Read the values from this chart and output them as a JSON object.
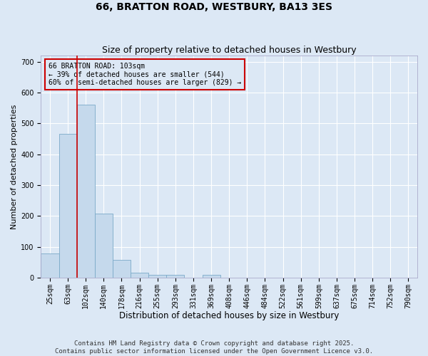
{
  "title": "66, BRATTON ROAD, WESTBURY, BA13 3ES",
  "subtitle": "Size of property relative to detached houses in Westbury",
  "xlabel": "Distribution of detached houses by size in Westbury",
  "ylabel": "Number of detached properties",
  "categories": [
    "25sqm",
    "63sqm",
    "102sqm",
    "140sqm",
    "178sqm",
    "216sqm",
    "255sqm",
    "293sqm",
    "331sqm",
    "369sqm",
    "408sqm",
    "446sqm",
    "484sqm",
    "522sqm",
    "561sqm",
    "599sqm",
    "637sqm",
    "675sqm",
    "714sqm",
    "752sqm",
    "790sqm"
  ],
  "values": [
    78,
    467,
    560,
    207,
    57,
    15,
    9,
    8,
    0,
    8,
    0,
    0,
    0,
    0,
    0,
    0,
    0,
    0,
    0,
    0,
    0
  ],
  "bar_color": "#c5d9ec",
  "bar_edge_color": "#7aaac8",
  "vline_color": "#cc0000",
  "annotation_text": "66 BRATTON ROAD: 103sqm\n← 39% of detached houses are smaller (544)\n60% of semi-detached houses are larger (829) →",
  "box_color": "#cc0000",
  "ylim": [
    0,
    720
  ],
  "yticks": [
    0,
    100,
    200,
    300,
    400,
    500,
    600,
    700
  ],
  "background_color": "#dce8f5",
  "grid_color": "#ffffff",
  "footer_line1": "Contains HM Land Registry data © Crown copyright and database right 2025.",
  "footer_line2": "Contains public sector information licensed under the Open Government Licence v3.0.",
  "title_fontsize": 10,
  "subtitle_fontsize": 9,
  "xlabel_fontsize": 8.5,
  "ylabel_fontsize": 8,
  "tick_fontsize": 7,
  "annot_fontsize": 7,
  "footer_fontsize": 6.5
}
